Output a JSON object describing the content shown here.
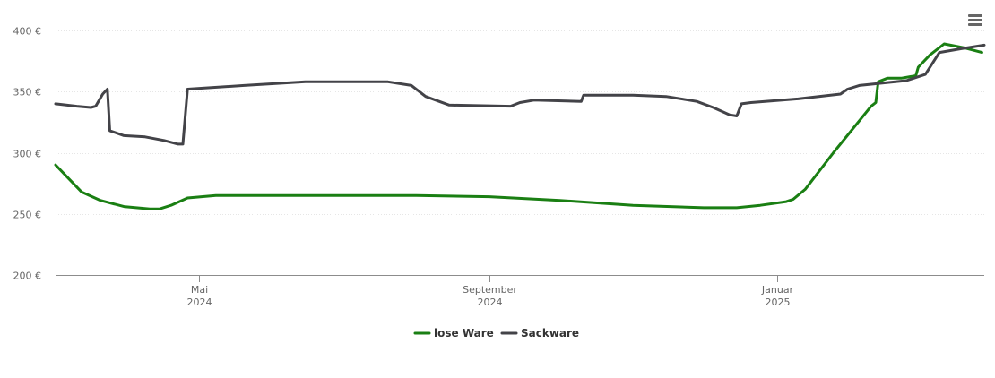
{
  "chart_data": {
    "type": "line",
    "title": "",
    "xlabel": "",
    "ylabel": "",
    "y_unit": "€",
    "ylim": [
      200,
      400
    ],
    "y_ticks": [
      {
        "value": 200,
        "label": "200 €"
      },
      {
        "value": 250,
        "label": "250 €"
      },
      {
        "value": 300,
        "label": "300 €"
      },
      {
        "value": 350,
        "label": "350 €"
      },
      {
        "value": 400,
        "label": "400 €"
      }
    ],
    "xlim": [
      "2024-03-01",
      "2025-03-30"
    ],
    "x_ticks": [
      {
        "date": "2024-05-01",
        "month": "Mai",
        "year": "2024"
      },
      {
        "date": "2024-09-01",
        "month": "September",
        "year": "2024"
      },
      {
        "date": "2025-01-01",
        "month": "Januar",
        "year": "2025"
      }
    ],
    "grid": true,
    "legend_position": "bottom-center",
    "series": [
      {
        "name": "lose Ware",
        "color": "#1a7f13",
        "points": [
          [
            "2024-03-01",
            290
          ],
          [
            "2024-03-06",
            280
          ],
          [
            "2024-03-12",
            268
          ],
          [
            "2024-03-20",
            261
          ],
          [
            "2024-03-30",
            256
          ],
          [
            "2024-04-10",
            254
          ],
          [
            "2024-04-14",
            254
          ],
          [
            "2024-04-19",
            257
          ],
          [
            "2024-04-26",
            263
          ],
          [
            "2024-05-08",
            265
          ],
          [
            "2024-06-01",
            265
          ],
          [
            "2024-07-01",
            265
          ],
          [
            "2024-08-01",
            265
          ],
          [
            "2024-09-01",
            264
          ],
          [
            "2024-10-01",
            261
          ],
          [
            "2024-11-01",
            257
          ],
          [
            "2024-12-01",
            255
          ],
          [
            "2024-12-15",
            255
          ],
          [
            "2024-12-25",
            257
          ],
          [
            "2025-01-05",
            260
          ],
          [
            "2025-01-08",
            262
          ],
          [
            "2025-01-13",
            270
          ],
          [
            "2025-01-25",
            300
          ],
          [
            "2025-02-10",
            338
          ],
          [
            "2025-02-12",
            341
          ],
          [
            "2025-02-13",
            358
          ],
          [
            "2025-02-17",
            361
          ],
          [
            "2025-02-23",
            361
          ],
          [
            "2025-03-01",
            363
          ],
          [
            "2025-03-02",
            370
          ],
          [
            "2025-03-07",
            380
          ],
          [
            "2025-03-13",
            389
          ],
          [
            "2025-03-21",
            386
          ],
          [
            "2025-03-29",
            382
          ]
        ]
      },
      {
        "name": "Sackware",
        "color": "#434348",
        "points": [
          [
            "2024-03-01",
            340
          ],
          [
            "2024-03-10",
            338
          ],
          [
            "2024-03-16",
            337
          ],
          [
            "2024-03-18",
            338
          ],
          [
            "2024-03-21",
            348
          ],
          [
            "2024-03-23",
            352
          ],
          [
            "2024-03-24",
            318
          ],
          [
            "2024-03-30",
            314
          ],
          [
            "2024-04-08",
            313
          ],
          [
            "2024-04-16",
            310
          ],
          [
            "2024-04-22",
            307
          ],
          [
            "2024-04-24",
            307
          ],
          [
            "2024-04-26",
            352
          ],
          [
            "2024-05-20",
            355
          ],
          [
            "2024-06-15",
            358
          ],
          [
            "2024-07-20",
            358
          ],
          [
            "2024-07-30",
            355
          ],
          [
            "2024-08-05",
            346
          ],
          [
            "2024-08-15",
            339
          ],
          [
            "2024-09-10",
            338
          ],
          [
            "2024-09-14",
            341
          ],
          [
            "2024-09-20",
            343
          ],
          [
            "2024-10-10",
            342
          ],
          [
            "2024-10-11",
            347
          ],
          [
            "2024-11-01",
            347
          ],
          [
            "2024-11-15",
            346
          ],
          [
            "2024-11-28",
            342
          ],
          [
            "2024-12-05",
            337
          ],
          [
            "2024-12-12",
            331
          ],
          [
            "2024-12-15",
            330
          ],
          [
            "2024-12-17",
            340
          ],
          [
            "2024-12-21",
            341
          ],
          [
            "2025-01-10",
            344
          ],
          [
            "2025-01-28",
            348
          ],
          [
            "2025-01-31",
            352
          ],
          [
            "2025-02-05",
            355
          ],
          [
            "2025-02-25",
            359
          ],
          [
            "2025-03-05",
            364
          ],
          [
            "2025-03-11",
            382
          ],
          [
            "2025-03-20",
            385
          ],
          [
            "2025-03-30",
            388
          ]
        ]
      }
    ]
  },
  "toolbar": {
    "menu_icon": "hamburger-menu-icon"
  }
}
